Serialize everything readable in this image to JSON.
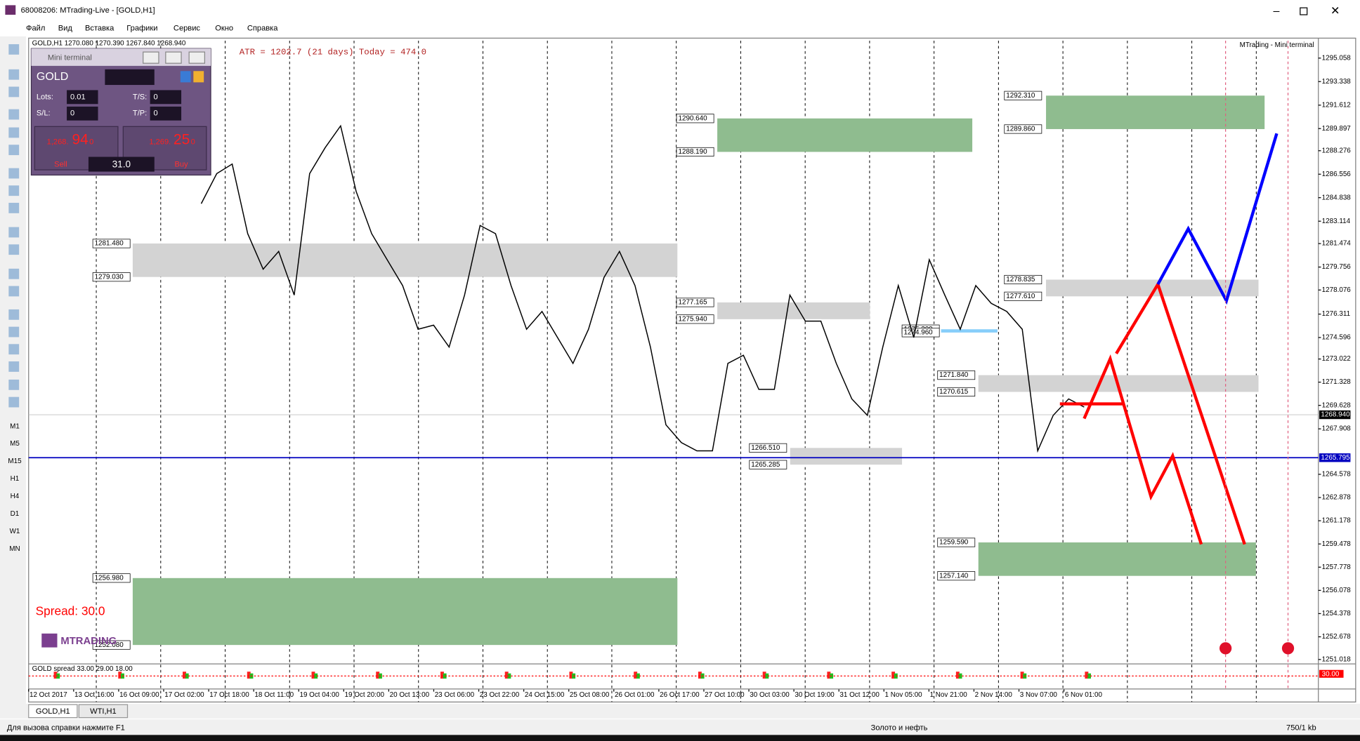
{
  "window": {
    "title": "68008206: MTrading-Live - [GOLD,H1]"
  },
  "menu": [
    "Файл",
    "Вид",
    "Вставка",
    "Графики",
    "Сервис",
    "Окно",
    "Справка"
  ],
  "timeframes": [
    "M1",
    "M5",
    "M15",
    "H1",
    "H4",
    "D1",
    "W1",
    "MN"
  ],
  "mini_terminal": {
    "title": "Mini terminal",
    "symbol": "GOLD",
    "lots_label": "Lots:",
    "lots": "0.01",
    "ts_label": "T/S:",
    "ts": "0",
    "sl_label": "S/L:",
    "sl": "0",
    "tp_label": "T/P:",
    "tp": "0",
    "sell_head": "1,268.",
    "sell_big": "94",
    "sell_tail": "0",
    "buy_head": "1,269.",
    "buy_big": "25",
    "buy_tail": "0",
    "spread": "31.0",
    "sell": "Sell",
    "buy": "Buy"
  },
  "chart_data": {
    "type": "line",
    "title": "GOLD,H1 1270.080 1270.390 1267.840 1268.940",
    "atr": "ATR = 1202.7   (21 days)   Today = 474.0",
    "watermark": "MTrading - Mini terminal",
    "spread_text": "Spread:  30.0",
    "logo": "MTRADING",
    "color": "#000000",
    "values": [
      1284.4,
      1286.6,
      1287.3,
      1282.2,
      1279.6,
      1280.9,
      1277.7,
      1286.6,
      1288.5,
      1290.1,
      1285.3,
      1282.2,
      1280.3,
      1278.4,
      1275.2,
      1275.5,
      1273.9,
      1277.7,
      1282.8,
      1282.2,
      1278.4,
      1275.2,
      1276.5,
      1274.6,
      1272.7,
      1275.2,
      1279.0,
      1280.9,
      1278.4,
      1273.9,
      1268.2,
      1266.9,
      1266.3,
      1266.3,
      1272.7,
      1273.3,
      1270.8,
      1270.8,
      1277.7,
      1275.8,
      1275.8,
      1272.7,
      1270.1,
      1268.9,
      1273.9,
      1278.4,
      1274.6,
      1280.3,
      1277.7,
      1275.2,
      1278.4,
      1277.1,
      1276.5,
      1275.2,
      1266.3,
      1268.9,
      1270.1,
      1269.5
    ],
    "ylim": [
      1250.76,
      1296.33
    ],
    "yticks": [
      1295.058,
      1293.338,
      1291.612,
      1289.897,
      1288.276,
      1286.556,
      1284.838,
      1283.114,
      1281.474,
      1279.756,
      1278.076,
      1276.311,
      1274.596,
      1273.022,
      1271.328,
      1269.628,
      1267.908,
      1264.578,
      1262.878,
      1261.178,
      1259.478,
      1257.778,
      1256.078,
      1254.378,
      1252.678,
      1251.018
    ],
    "current_price": {
      "value": 1268.94,
      "label": "1268.940"
    },
    "line_price": 1265.795,
    "time_labels": [
      "12 Oct 2017",
      "13 Oct 16:00",
      "16 Oct 09:00",
      "17 Oct 02:00",
      "17 Oct 18:00",
      "18 Oct 11:00",
      "19 Oct 04:00",
      "19 Oct 20:00",
      "20 Oct 13:00",
      "23 Oct 06:00",
      "23 Oct 22:00",
      "24 Oct 15:00",
      "25 Oct 08:00",
      "26 Oct 01:00",
      "26 Oct 17:00",
      "27 Oct 10:00",
      "30 Oct 03:00",
      "30 Oct 19:00",
      "31 Oct 12:00",
      "1 Nov 05:00",
      "1 Nov 21:00",
      "2 Nov 14:00",
      "3 Nov 07:00",
      "6 Nov 01:00"
    ],
    "zones": [
      {
        "color": "#d3d3d3",
        "top": {
          "value": 1281.48,
          "label": "1281.480"
        },
        "bottom": {
          "value": 1279.03,
          "label": "1279.030"
        }
      },
      {
        "color": "#8fbc8f",
        "top": {
          "value": 1256.98,
          "label": "1256.980"
        },
        "bottom": {
          "value": 1252.08,
          "label": "1252.080"
        }
      },
      {
        "color": "#8fbc8f",
        "top": {
          "value": 1290.64,
          "label": "1290.640"
        },
        "bottom": {
          "value": 1288.19,
          "label": "1288.190"
        }
      },
      {
        "color": "#d3d3d3",
        "top": 1277.165,
        "bottom": {
          "value": 1275.94,
          "label": "1275.940"
        }
      },
      {
        "color": "#d3d3d3",
        "top": {
          "value": 1266.51,
          "label": "1266.510"
        },
        "bottom": 1265.285
      },
      {
        "color": "#87cefa",
        "top": {
          "value": 1275.2,
          "label": "1275.200"
        },
        "bottom": {
          "value": 1274.96,
          "label": "1274.960"
        }
      },
      {
        "color": "#8fbc8f",
        "top": {
          "value": 1292.31,
          "label": "1292.310"
        },
        "bottom": {
          "value": 1289.86,
          "label": "1289.860"
        }
      },
      {
        "color": "#d3d3d3",
        "top": 1278.835,
        "bottom": {
          "value": 1277.61,
          "label": "1277.610"
        }
      },
      {
        "color": "#d3d3d3",
        "top": {
          "value": 1271.84,
          "label": "1271.840"
        },
        "bottom": 1270.615
      },
      {
        "color": "#8fbc8f",
        "top": {
          "value": 1259.59,
          "label": "1259.590"
        },
        "bottom": {
          "value": 1257.14,
          "label": "1257.140"
        }
      }
    ],
    "indicator": {
      "label": "GOLD spread 33.00 29.00 18.00",
      "value_label": "30.00"
    }
  },
  "tabs": [
    "GOLD,H1",
    "WTI,H1"
  ],
  "status": {
    "help": "Для вызова справки нажмите F1",
    "profile": "Золото и нефть",
    "traffic": "750/1 kb"
  }
}
